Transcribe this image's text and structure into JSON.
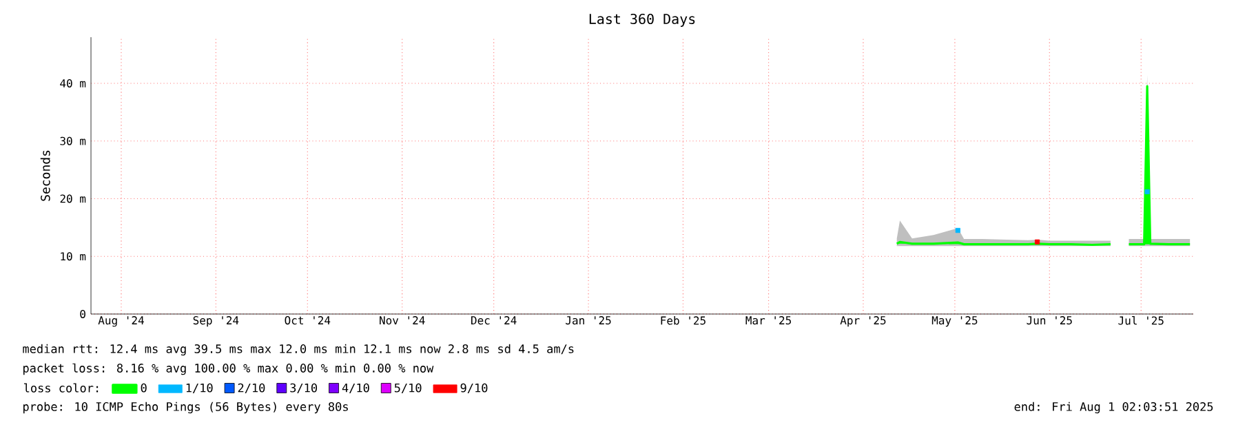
{
  "chart_data": {
    "type": "line",
    "title": "Last 360 Days",
    "ylabel": "Seconds",
    "xlim": [
      "2024-08-05T02:03",
      "2025-08-01T02:03"
    ],
    "ylim": [
      0,
      48
    ],
    "xticks": [
      {
        "value": "2024-08-15",
        "label": "Aug '24"
      },
      {
        "value": "2024-09-15",
        "label": "Sep '24"
      },
      {
        "value": "2024-10-15",
        "label": "Oct '24"
      },
      {
        "value": "2024-11-15",
        "label": "Nov '24"
      },
      {
        "value": "2024-12-15",
        "label": "Dec '24"
      },
      {
        "value": "2025-01-15",
        "label": "Jan '25"
      },
      {
        "value": "2025-02-15",
        "label": "Feb '25"
      },
      {
        "value": "2025-03-15",
        "label": "Mar '25"
      },
      {
        "value": "2025-04-15",
        "label": "Apr '25"
      },
      {
        "value": "2025-05-15",
        "label": "May '25"
      },
      {
        "value": "2025-06-15",
        "label": "Jun '25"
      },
      {
        "value": "2025-07-15",
        "label": "Jul '25"
      }
    ],
    "yticks": [
      0,
      {
        "value": 10,
        "label": "10 m"
      },
      {
        "value": 20,
        "label": "20 m"
      },
      {
        "value": 30,
        "label": "30 m"
      },
      {
        "value": 40,
        "label": "40 m"
      }
    ],
    "grid": true,
    "legend": "bottom",
    "legend_title": "loss color:",
    "series": [
      {
        "name": "0",
        "color": "#00ff00",
        "marker": "none",
        "x": [
          "2025-04-26",
          "2025-04-27",
          "2025-05-01",
          "2025-05-08",
          "2025-05-16",
          "2025-05-18",
          "2025-05-24",
          "2025-06-01",
          "2025-06-08",
          "2025-06-11",
          "2025-06-15",
          "2025-06-22",
          "2025-06-29",
          "2025-07-05",
          "2025-07-08",
          "2025-07-11",
          "2025-07-16",
          "2025-07-17",
          "2025-07-18",
          "2025-07-24",
          "2025-07-31"
        ],
        "values": [
          12.2,
          12.5,
          12.2,
          12.2,
          12.4,
          12.1,
          12.1,
          12.1,
          12.1,
          12.2,
          12.1,
          12.1,
          12.0,
          12.1,
          null,
          12.1,
          12.1,
          39.5,
          12.2,
          12.1,
          12.1
        ],
        "lower": [
          11.8,
          11.8,
          11.8,
          11.8,
          11.8,
          11.8,
          11.8,
          11.8,
          11.8,
          11.8,
          11.8,
          11.8,
          11.8,
          11.8,
          null,
          11.8,
          11.8,
          11.8,
          11.8,
          11.8,
          11.8
        ],
        "upper": [
          13.1,
          16.2,
          13.1,
          13.7,
          14.9,
          13.0,
          13.0,
          12.9,
          12.8,
          12.9,
          12.7,
          12.7,
          12.7,
          12.7,
          null,
          13.0,
          13.0,
          41.5,
          13.0,
          13.0,
          13.0
        ]
      },
      {
        "name": "1/10",
        "type": "scatter",
        "color": "#00b8ff",
        "marker": "square",
        "x": [
          "2025-05-16",
          "2025-07-17"
        ],
        "values": [
          14.5,
          21.2
        ]
      },
      {
        "name": "2/10",
        "type": "scatter",
        "color": "#0059ff",
        "marker": "square"
      },
      {
        "name": "3/10",
        "type": "scatter",
        "color": "#5e00ff",
        "marker": "square"
      },
      {
        "name": "4/10",
        "type": "scatter",
        "color": "#7e00ff",
        "marker": "square"
      },
      {
        "name": "5/10",
        "type": "scatter",
        "color": "#dd00ff",
        "marker": "square"
      },
      {
        "name": "9/10",
        "type": "scatter",
        "color": "#ff0000",
        "marker": "square",
        "x": [
          "2025-06-11"
        ],
        "values": [
          12.5
        ]
      }
    ],
    "annotations": [
      "median rtt:  12.4 ms avg  39.5 ms max  12.0 ms min  12.1 ms now  2.8 ms sd  4.5   am/s",
      "packet loss: 8.16 % avg  100.00 % max  0.00 % min  0.00 % now",
      "probe:       10 ICMP Echo Pings (56 Bytes) every 80s",
      "end: Fri Aug  1 02:03:51 2025"
    ]
  }
}
